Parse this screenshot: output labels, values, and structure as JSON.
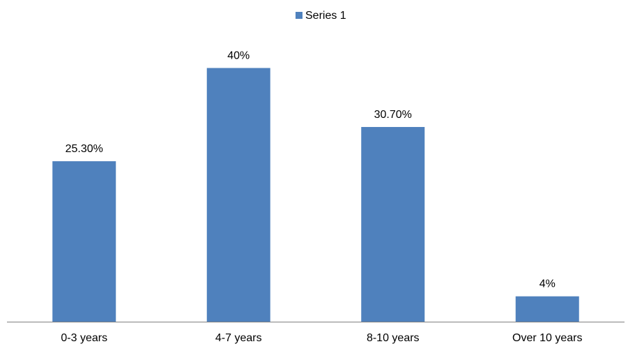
{
  "chart_data": {
    "type": "bar",
    "categories": [
      "0-3 years",
      "4-7 years",
      "8-10 years",
      "Over 10 years"
    ],
    "series": [
      {
        "name": "Series 1",
        "values": [
          25.3,
          40,
          30.7,
          4
        ],
        "color": "#4F81BD"
      }
    ],
    "data_labels": [
      "25.30%",
      "40%",
      "30.70%",
      "4%"
    ],
    "title": "",
    "xlabel": "",
    "ylabel": "",
    "ylim": [
      0,
      45
    ],
    "grid": false,
    "legend_position": "top-center",
    "y_axis_visible": false,
    "axis_color": "#808080"
  }
}
